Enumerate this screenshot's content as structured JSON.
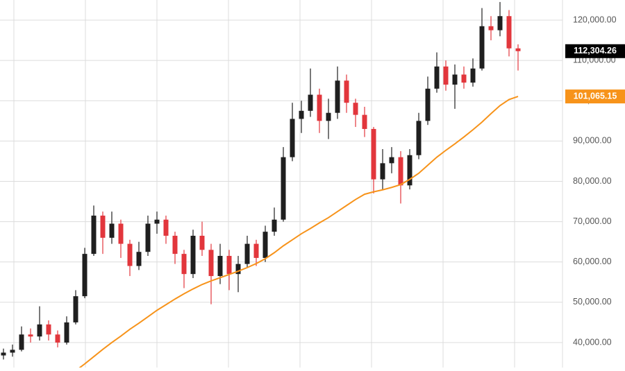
{
  "chart_data": {
    "type": "candlestick",
    "open": [
      36800,
      37500,
      38200,
      42000,
      41500,
      44500,
      42000,
      40000,
      45000,
      51500,
      62000,
      71500,
      66000,
      69500,
      64500,
      59000,
      62500,
      69500,
      70500,
      66500,
      62000,
      57000,
      66500,
      63000,
      56500,
      61500,
      57000,
      59500,
      64500,
      61000,
      67500,
      70500,
      86000,
      95500,
      97500,
      101500,
      95000,
      97000,
      105000,
      99500,
      96500,
      93000,
      80500,
      84500,
      86000,
      79000,
      86500,
      95000,
      103000,
      108500,
      104000,
      106500,
      104500,
      108000,
      118500,
      117500,
      121000,
      113000
    ],
    "high": [
      38500,
      39500,
      44000,
      43500,
      49000,
      45500,
      43000,
      46500,
      53000,
      63500,
      74000,
      72500,
      72500,
      70500,
      65500,
      65000,
      71500,
      72500,
      71500,
      67500,
      63000,
      68000,
      70000,
      64500,
      64500,
      63000,
      61500,
      66500,
      65500,
      69000,
      73500,
      88500,
      99500,
      100000,
      108000,
      103000,
      100500,
      108500,
      106500,
      100500,
      98500,
      93500,
      88000,
      88500,
      87500,
      88000,
      97000,
      106000,
      112000,
      110000,
      109000,
      108500,
      110500,
      123000,
      121000,
      124500,
      122500,
      114000
    ],
    "low": [
      35800,
      36500,
      37800,
      40000,
      40500,
      40500,
      38800,
      39500,
      44500,
      51000,
      61500,
      62000,
      64500,
      61000,
      56500,
      58000,
      61500,
      67000,
      64500,
      59500,
      53500,
      56000,
      61500,
      49500,
      54500,
      53000,
      52500,
      58500,
      59000,
      60000,
      66500,
      70000,
      85000,
      92000,
      96000,
      92000,
      90500,
      95500,
      97000,
      93500,
      91000,
      77000,
      78000,
      82000,
      74500,
      78000,
      85500,
      94000,
      102000,
      102500,
      98000,
      103000,
      103500,
      107500,
      115000,
      116000,
      111000,
      107500
    ],
    "close": [
      37500,
      38200,
      42000,
      41500,
      44500,
      42000,
      40000,
      45000,
      51500,
      62000,
      71500,
      66000,
      69500,
      64500,
      59000,
      62500,
      69500,
      70500,
      66500,
      62000,
      57000,
      66500,
      63000,
      56500,
      61500,
      57000,
      59500,
      64500,
      61000,
      67500,
      70500,
      86000,
      95500,
      97500,
      101500,
      95000,
      97000,
      105000,
      99500,
      96500,
      93000,
      80500,
      84500,
      86000,
      79000,
      86500,
      95000,
      103000,
      108500,
      104000,
      106500,
      104500,
      108000,
      118500,
      117500,
      121000,
      113000,
      112304.26
    ],
    "up_color": "#1f1f1f",
    "down_color": "#e2363c",
    "moving_average": {
      "color": "#f7931a",
      "values": [
        null,
        null,
        null,
        null,
        null,
        null,
        null,
        null,
        33000,
        34700,
        36500,
        38300,
        40000,
        41600,
        43300,
        44800,
        46400,
        48000,
        49400,
        50800,
        52100,
        53300,
        54400,
        55300,
        56100,
        56900,
        57700,
        58600,
        59600,
        60800,
        62300,
        64000,
        65500,
        67000,
        68300,
        69700,
        71000,
        72500,
        74000,
        75500,
        76800,
        77400,
        77900,
        78500,
        79200,
        80500,
        82000,
        84000,
        86000,
        87700,
        89300,
        91000,
        92800,
        94700,
        96800,
        98800,
        100300,
        101065.15
      ]
    },
    "ylim": [
      33800,
      125000
    ],
    "yticks": [
      {
        "value": 40000,
        "label": "40,000.00"
      },
      {
        "value": 50000,
        "label": "50,000.00"
      },
      {
        "value": 60000,
        "label": "60,000.00"
      },
      {
        "value": 70000,
        "label": "70,000.00"
      },
      {
        "value": 80000,
        "label": "80,000.00"
      },
      {
        "value": 90000,
        "label": "90,000.00"
      },
      {
        "value": 100000,
        "label": "100,000.00"
      },
      {
        "value": 110000,
        "label": "110,000.00"
      },
      {
        "value": 120000,
        "label": "120,000.00"
      }
    ],
    "price_labels": [
      {
        "value": 112304.26,
        "label": "112,304.26",
        "color": "#000000"
      },
      {
        "value": 101065.15,
        "label": "101,065.15",
        "color": "#f7931a"
      }
    ],
    "grid": true
  }
}
